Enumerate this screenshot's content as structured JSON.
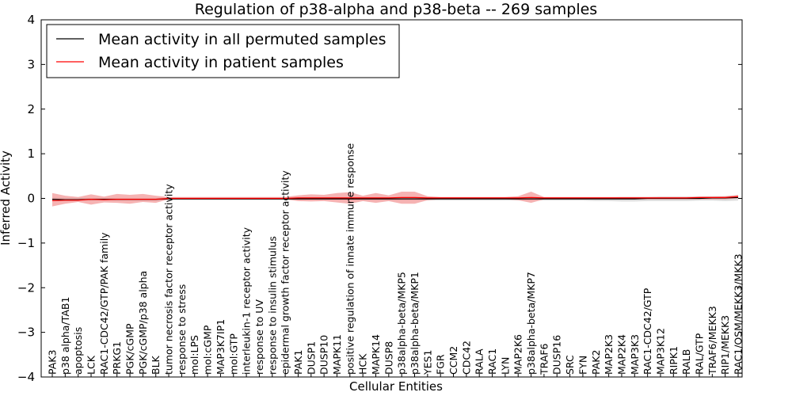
{
  "chart_data": {
    "type": "line",
    "title": "Regulation of p38-alpha and p38-beta -- 269 samples",
    "xlabel": "Cellular Entities",
    "ylabel": "Inferred Activity",
    "ylim": [
      -4,
      4
    ],
    "yticks": [
      4,
      3,
      2,
      1,
      0,
      -1,
      -2,
      -3,
      -4
    ],
    "ytick_labels": [
      "4",
      "3",
      "2",
      "1",
      "0",
      "−1",
      "−2",
      "−3",
      "−4"
    ],
    "legend_position": "top-left",
    "categories": [
      "PAK3",
      "p38 alpha/TAB1",
      "apoptosis",
      "LCK",
      "RAC1-CDC42/GTP/PAK family",
      "PRKG1",
      "PGK/cGMP",
      "PGK/cGMP/p38 alpha",
      "BLK",
      "tumor necrosis factor receptor activity",
      "response to stress",
      "mol:LPS",
      "mol:cGMP",
      "MAP3K7IP1",
      "mol:GTP",
      "interleukin-1 receptor activity",
      "response to UV",
      "response to insulin stimulus",
      "epidermal growth factor receptor activity",
      "PAK1",
      "DUSP1",
      "DUSP10",
      "MAPK11",
      "positive regulation of innate immune response",
      "HCK",
      "MAPK14",
      "DUSP8",
      "p38alpha-beta/MKP5",
      "p38alpha-beta/MKP1",
      "YES1",
      "FGR",
      "CCM2",
      "CDC42",
      "RALA",
      "RAC1",
      "LYN",
      "MAP2K6",
      "p38alpha-beta/MKP7",
      "TRAF6",
      "DUSP16",
      "SRC",
      "FYN",
      "PAK2",
      "MAP2K3",
      "MAP2K4",
      "MAP3K3",
      "RAC1-CDC42/GTP",
      "MAP3K12",
      "RIPK1",
      "RALB",
      "RAL/GTP",
      "TRAF6/MEKK3",
      "RIP1/MEKK3",
      "RAC1/OSM/MEKK3/MKK3"
    ],
    "series": [
      {
        "name": "Mean activity in all permuted samples",
        "color": "#000000",
        "band_color": "#b3b3b3",
        "values": [
          -0.02,
          -0.03,
          -0.03,
          -0.02,
          -0.02,
          -0.02,
          -0.02,
          -0.02,
          -0.02,
          -0.01,
          -0.01,
          -0.01,
          -0.01,
          -0.01,
          -0.01,
          -0.01,
          -0.01,
          -0.01,
          -0.01,
          -0.01,
          -0.01,
          -0.01,
          -0.01,
          -0.01,
          -0.01,
          -0.01,
          -0.01,
          -0.01,
          -0.01,
          -0.01,
          -0.01,
          -0.01,
          -0.01,
          -0.01,
          -0.01,
          -0.01,
          -0.01,
          -0.01,
          -0.01,
          -0.01,
          -0.01,
          -0.01,
          -0.01,
          -0.01,
          -0.01,
          -0.01,
          0.0,
          0.0,
          0.0,
          0.0,
          0.0,
          0.01,
          0.01,
          0.02
        ],
        "band_lower": [
          -0.06,
          -0.06,
          -0.06,
          -0.05,
          -0.05,
          -0.05,
          -0.05,
          -0.05,
          -0.05,
          -0.04,
          -0.04,
          -0.04,
          -0.04,
          -0.04,
          -0.04,
          -0.04,
          -0.04,
          -0.04,
          -0.04,
          -0.04,
          -0.04,
          -0.04,
          -0.04,
          -0.04,
          -0.05,
          -0.05,
          -0.05,
          -0.05,
          -0.05,
          -0.05,
          -0.05,
          -0.05,
          -0.05,
          -0.05,
          -0.05,
          -0.05,
          -0.05,
          -0.05,
          -0.05,
          -0.05,
          -0.05,
          -0.05,
          -0.06,
          -0.06,
          -0.07,
          -0.07,
          -0.06,
          -0.06,
          -0.06,
          -0.06,
          -0.05,
          -0.05,
          -0.06,
          -0.05
        ],
        "band_upper": [
          0.02,
          0.01,
          0.01,
          0.01,
          0.01,
          0.01,
          0.01,
          0.01,
          0.01,
          0.02,
          0.02,
          0.02,
          0.02,
          0.02,
          0.02,
          0.02,
          0.02,
          0.02,
          0.02,
          0.02,
          0.02,
          0.02,
          0.02,
          0.02,
          0.02,
          0.02,
          0.02,
          0.02,
          0.02,
          0.02,
          0.02,
          0.02,
          0.02,
          0.02,
          0.02,
          0.02,
          0.02,
          0.02,
          0.02,
          0.02,
          0.02,
          0.02,
          0.02,
          0.02,
          0.03,
          0.03,
          0.03,
          0.04,
          0.04,
          0.04,
          0.04,
          0.05,
          0.05,
          0.06
        ]
      },
      {
        "name": "Mean activity in patient samples",
        "color": "#ff0000",
        "band_color": "#f08080",
        "values": [
          -0.05,
          -0.04,
          -0.04,
          -0.02,
          -0.03,
          -0.02,
          -0.02,
          -0.02,
          -0.02,
          0.0,
          0.0,
          0.0,
          0.0,
          0.0,
          0.0,
          0.0,
          0.0,
          0.0,
          0.0,
          0.01,
          0.01,
          0.01,
          0.01,
          0.01,
          0.01,
          0.01,
          0.01,
          0.02,
          0.02,
          0.01,
          0.01,
          0.01,
          0.01,
          0.01,
          0.01,
          0.01,
          0.01,
          0.02,
          0.01,
          0.01,
          0.01,
          0.01,
          0.01,
          0.01,
          0.01,
          0.01,
          0.01,
          0.01,
          0.01,
          0.01,
          0.02,
          0.02,
          0.02,
          0.04
        ],
        "band_lower": [
          -0.18,
          -0.12,
          -0.08,
          -0.14,
          -0.09,
          -0.1,
          -0.12,
          -0.08,
          -0.1,
          -0.02,
          -0.02,
          -0.02,
          -0.02,
          -0.02,
          -0.02,
          -0.02,
          -0.02,
          -0.02,
          -0.02,
          -0.06,
          -0.07,
          -0.06,
          -0.09,
          -0.12,
          -0.06,
          -0.1,
          -0.06,
          -0.12,
          -0.12,
          -0.04,
          -0.02,
          -0.02,
          -0.02,
          -0.02,
          -0.02,
          -0.02,
          -0.04,
          -0.1,
          -0.02,
          -0.02,
          -0.02,
          -0.02,
          -0.02,
          -0.02,
          -0.02,
          -0.02,
          -0.02,
          -0.02,
          -0.02,
          -0.02,
          -0.02,
          -0.02,
          -0.02,
          0.0
        ],
        "band_upper": [
          0.12,
          0.06,
          0.03,
          0.09,
          0.04,
          0.1,
          0.08,
          0.1,
          0.06,
          0.03,
          0.03,
          0.03,
          0.03,
          0.03,
          0.03,
          0.03,
          0.03,
          0.03,
          0.03,
          0.07,
          0.09,
          0.08,
          0.12,
          0.14,
          0.06,
          0.12,
          0.07,
          0.15,
          0.15,
          0.05,
          0.03,
          0.03,
          0.03,
          0.03,
          0.03,
          0.03,
          0.05,
          0.15,
          0.03,
          0.03,
          0.03,
          0.03,
          0.03,
          0.03,
          0.03,
          0.03,
          0.03,
          0.03,
          0.03,
          0.03,
          0.04,
          0.04,
          0.05,
          0.08
        ]
      }
    ]
  }
}
